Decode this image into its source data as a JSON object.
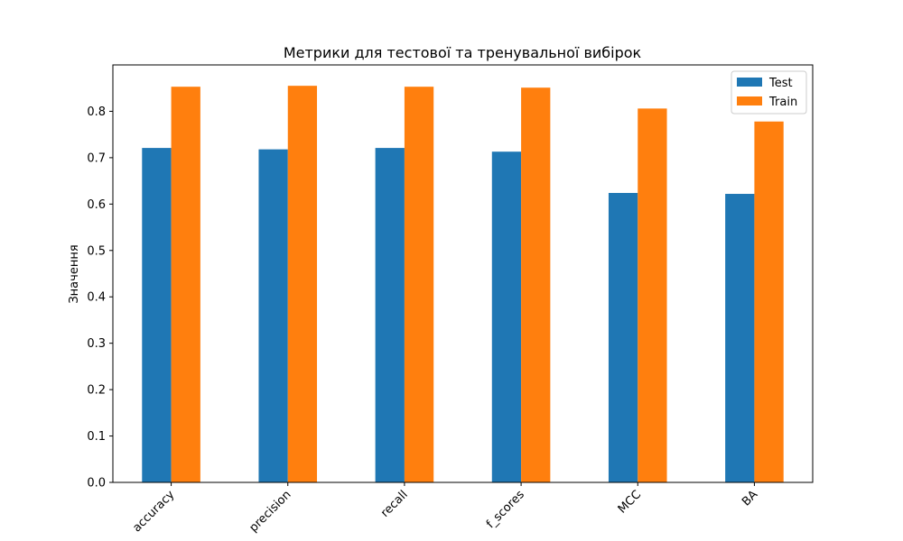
{
  "chart_data": {
    "type": "bar",
    "title": "Метрики для тестової та тренувальної вибірок",
    "xlabel": "",
    "ylabel": "Значення",
    "categories": [
      "accuracy",
      "precision",
      "recall",
      "f_scores",
      "MCC",
      "BA"
    ],
    "series": [
      {
        "name": "Test",
        "color": "#1f77b4",
        "values": [
          0.721,
          0.718,
          0.721,
          0.713,
          0.624,
          0.622
        ]
      },
      {
        "name": "Train",
        "color": "#ff7f0e",
        "values": [
          0.853,
          0.855,
          0.853,
          0.851,
          0.806,
          0.778
        ]
      }
    ],
    "ylim": [
      0,
      0.9
    ],
    "yticks": [
      "0.0",
      "0.1",
      "0.2",
      "0.3",
      "0.4",
      "0.5",
      "0.6",
      "0.7",
      "0.8"
    ],
    "grid": false,
    "legend_position": "top-right"
  }
}
